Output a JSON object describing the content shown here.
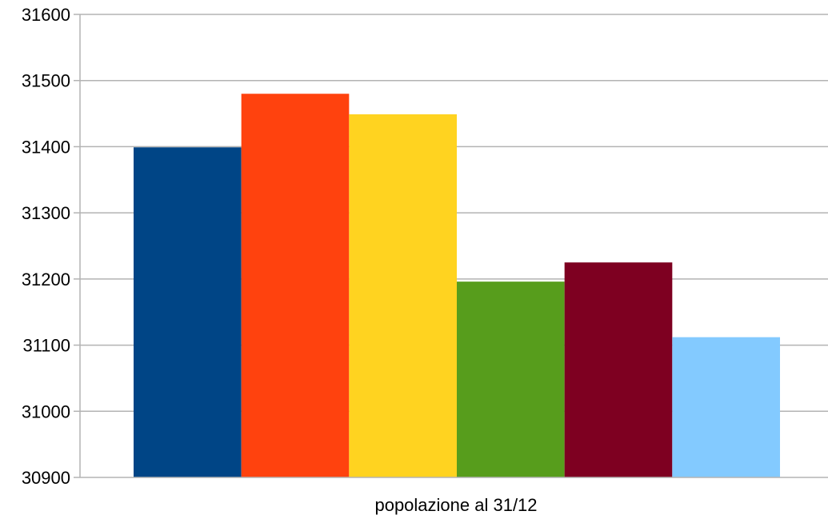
{
  "chart_data": {
    "type": "bar",
    "categories": [
      "popolazione al 31/12"
    ],
    "series": [
      {
        "values": [
          31399
        ],
        "color": "#004586"
      },
      {
        "values": [
          31480
        ],
        "color": "#ff420e"
      },
      {
        "values": [
          31449
        ],
        "color": "#ffd320"
      },
      {
        "values": [
          31196
        ],
        "color": "#579d1c"
      },
      {
        "values": [
          31225
        ],
        "color": "#7e0021"
      },
      {
        "values": [
          31112
        ],
        "color": "#83caff"
      }
    ],
    "title": "",
    "xlabel": "",
    "ylabel": "",
    "ylim": [
      30900,
      31600
    ],
    "yticks": [
      30900,
      31000,
      31100,
      31200,
      31300,
      31400,
      31500,
      31600
    ],
    "grid": true,
    "legend": "none"
  }
}
